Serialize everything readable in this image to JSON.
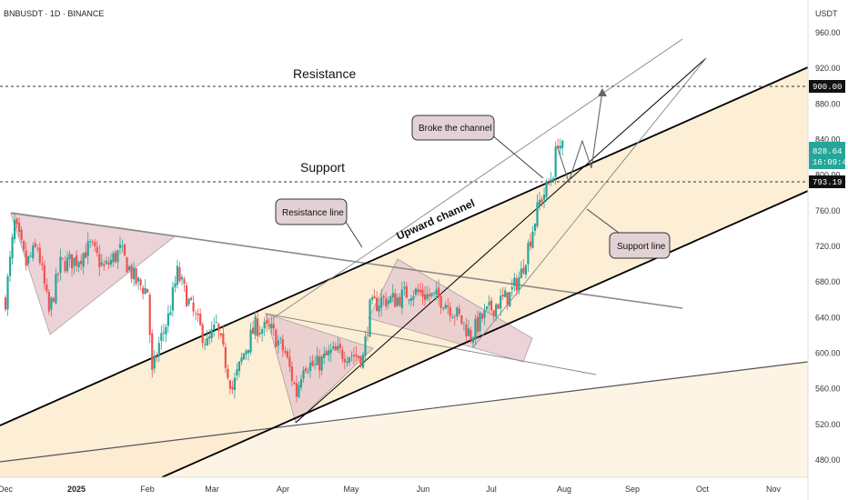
{
  "header": {
    "ticker": "BNBUSDT · 1D · BINANCE"
  },
  "axis": {
    "currency": "USDT"
  },
  "colors": {
    "up": "#26a69a",
    "down": "#ef5350",
    "channel_fill": "#fdebcf",
    "triangle_fill": "#e7c9cf",
    "last_price_bg": "#26a69a",
    "level_bg": "#111111"
  },
  "levels": {
    "resistance_label": "Resistance",
    "support_label": "Support",
    "resistance_price": "900.00",
    "support_price": "793.19"
  },
  "last_price": {
    "price": "828.64",
    "countdown": "16:09:46"
  },
  "annotations": {
    "broke_channel": "Broke the channel",
    "resistance_line": "Resistance line",
    "support_line": "Support line",
    "upward_channel": "Upward channel"
  },
  "chart_data": {
    "type": "candlestick",
    "title": "BNBUSDT · 1D · BINANCE",
    "y_axis_label": "USDT",
    "y_ticks": [
      "960.00",
      "920.00",
      "880.00",
      "840.00",
      "800.00",
      "760.00",
      "720.00",
      "680.00",
      "640.00",
      "600.00",
      "560.00",
      "520.00",
      "480.00"
    ],
    "x_ticks": [
      {
        "label": "Dec",
        "bold": false
      },
      {
        "label": "2025",
        "bold": true
      },
      {
        "label": "Feb",
        "bold": false
      },
      {
        "label": "Mar",
        "bold": false
      },
      {
        "label": "Apr",
        "bold": false
      },
      {
        "label": "May",
        "bold": false
      },
      {
        "label": "Jun",
        "bold": false
      },
      {
        "label": "Jul",
        "bold": false
      },
      {
        "label": "Aug",
        "bold": false
      },
      {
        "label": "Sep",
        "bold": false
      },
      {
        "label": "Oct",
        "bold": false
      },
      {
        "label": "Nov",
        "bold": false
      }
    ],
    "price_path": [
      [
        "2024-12-01",
        660
      ],
      [
        "2024-12-05",
        745
      ],
      [
        "2024-12-10",
        700
      ],
      [
        "2024-12-15",
        720
      ],
      [
        "2024-12-20",
        645
      ],
      [
        "2024-12-25",
        700
      ],
      [
        "2025-01-01",
        705
      ],
      [
        "2025-01-07",
        720
      ],
      [
        "2025-01-13",
        695
      ],
      [
        "2025-01-20",
        715
      ],
      [
        "2025-01-27",
        680
      ],
      [
        "2025-02-01",
        670
      ],
      [
        "2025-02-03",
        575
      ],
      [
        "2025-02-06",
        610
      ],
      [
        "2025-02-10",
        640
      ],
      [
        "2025-02-14",
        690
      ],
      [
        "2025-02-20",
        650
      ],
      [
        "2025-02-27",
        610
      ],
      [
        "2025-03-03",
        630
      ],
      [
        "2025-03-10",
        560
      ],
      [
        "2025-03-15",
        600
      ],
      [
        "2025-03-20",
        630
      ],
      [
        "2025-03-27",
        625
      ],
      [
        "2025-04-02",
        600
      ],
      [
        "2025-04-07",
        555
      ],
      [
        "2025-04-10",
        590
      ],
      [
        "2025-04-15",
        585
      ],
      [
        "2025-04-22",
        600
      ],
      [
        "2025-04-29",
        600
      ],
      [
        "2025-05-06",
        595
      ],
      [
        "2025-05-09",
        650
      ],
      [
        "2025-05-14",
        660
      ],
      [
        "2025-05-20",
        660
      ],
      [
        "2025-05-27",
        670
      ],
      [
        "2025-06-03",
        665
      ],
      [
        "2025-06-10",
        660
      ],
      [
        "2025-06-17",
        640
      ],
      [
        "2025-06-22",
        620
      ],
      [
        "2025-06-27",
        640
      ],
      [
        "2025-07-03",
        655
      ],
      [
        "2025-07-09",
        665
      ],
      [
        "2025-07-14",
        690
      ],
      [
        "2025-07-18",
        730
      ],
      [
        "2025-07-22",
        770
      ],
      [
        "2025-07-26",
        790
      ],
      [
        "2025-07-28",
        805
      ],
      [
        "2025-07-30",
        840
      ],
      [
        "2025-08-01",
        828.64
      ]
    ],
    "horizontal_levels": [
      {
        "name": "Resistance",
        "price": 900.0
      },
      {
        "name": "Support",
        "price": 793.19
      }
    ],
    "last_price": 828.64,
    "ylim": [
      460,
      990
    ],
    "xlim": [
      "2024-12-01",
      "2025-11-20"
    ],
    "grid": false
  }
}
